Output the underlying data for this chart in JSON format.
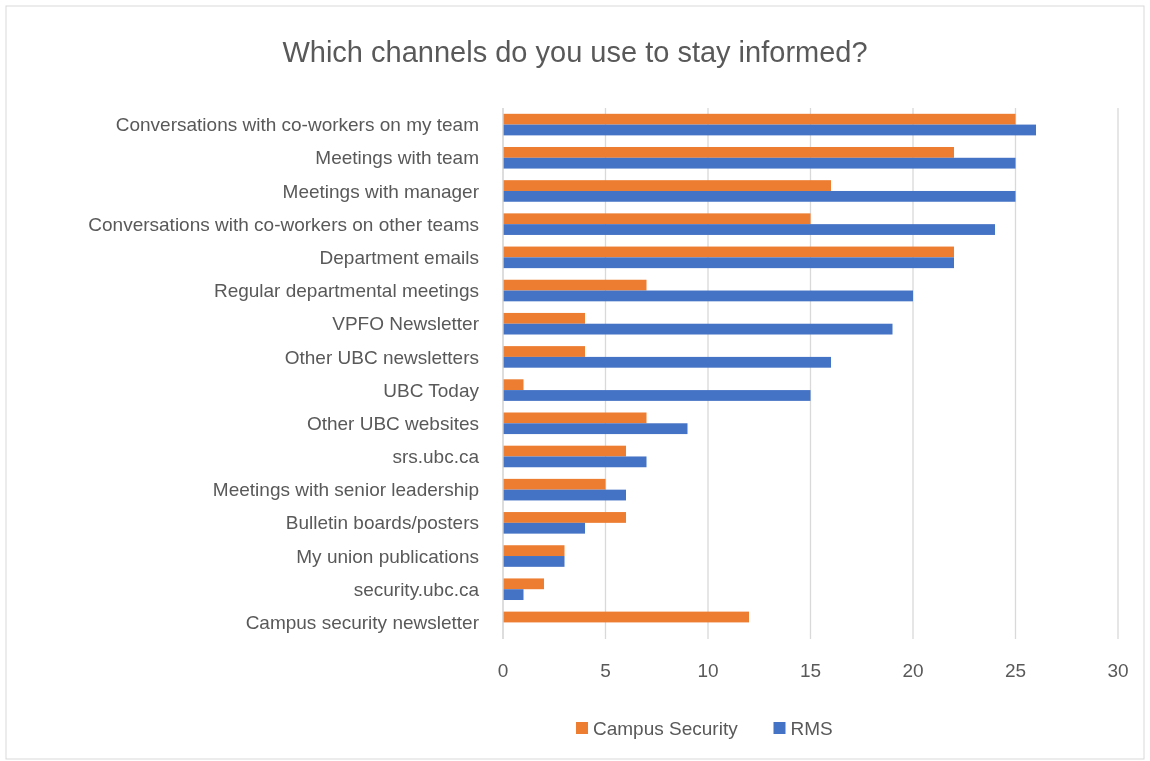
{
  "chart_data": {
    "type": "bar",
    "orientation": "horizontal",
    "title": "Which channels do you use to stay informed?",
    "categories": [
      "Conversations with co-workers on my team",
      "Meetings with team",
      "Meetings with manager",
      "Conversations with co-workers on other teams",
      "Department emails",
      "Regular departmental meetings",
      "VPFO Newsletter",
      "Other UBC newsletters",
      "UBC Today",
      "Other UBC websites",
      "srs.ubc.ca",
      "Meetings with senior leadership",
      "Bulletin boards/posters",
      "My union publications",
      "security.ubc.ca",
      "Campus security newsletter"
    ],
    "series": [
      {
        "name": "Campus Security",
        "color": "#ed7d31",
        "values": [
          25,
          22,
          16,
          15,
          22,
          7,
          4,
          4,
          1,
          7,
          6,
          5,
          6,
          3,
          2,
          12
        ]
      },
      {
        "name": "RMS",
        "color": "#4472c4",
        "values": [
          26,
          25,
          25,
          24,
          22,
          20,
          19,
          16,
          15,
          9,
          7,
          6,
          4,
          3,
          1,
          0
        ]
      }
    ],
    "xlim": [
      0,
      30
    ],
    "xticks": [
      0,
      5,
      10,
      15,
      20,
      25,
      30
    ],
    "grid": "x",
    "legend": "bottom"
  }
}
